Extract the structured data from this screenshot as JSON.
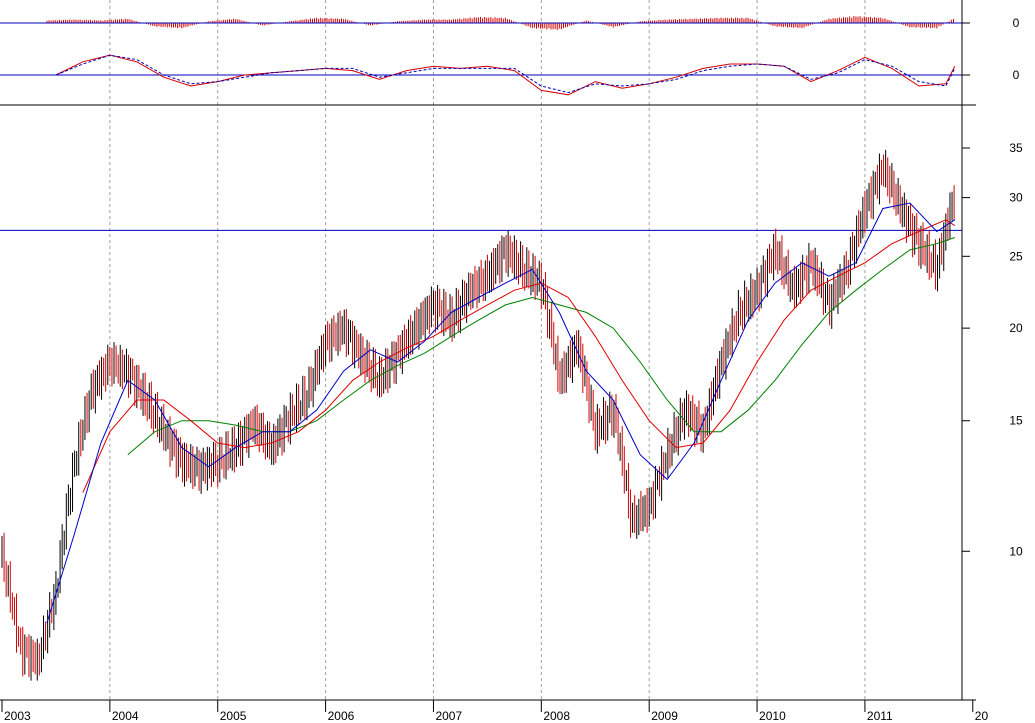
{
  "chart_data": [
    {
      "type": "bar",
      "panel": "histogram-oscillator",
      "y_tick_labels": [
        "0"
      ],
      "colors": {
        "bars": "#d40000",
        "zero_line": "#0000c0"
      },
      "x": [
        "2003-06",
        "2003-09",
        "2003-12",
        "2004-03",
        "2004-06",
        "2004-09",
        "2004-12",
        "2005-03",
        "2005-06",
        "2005-09",
        "2005-12",
        "2006-03",
        "2006-06",
        "2006-09",
        "2006-12",
        "2007-03",
        "2007-06",
        "2007-09",
        "2007-12",
        "2008-03",
        "2008-06",
        "2008-09",
        "2008-12",
        "2009-03",
        "2009-06",
        "2009-09",
        "2009-12",
        "2010-03",
        "2010-06",
        "2010-09",
        "2010-12",
        "2011-03",
        "2011-06",
        "2011-09",
        "2011-11"
      ],
      "values": [
        0.3,
        0.4,
        0.3,
        0.5,
        -0.4,
        -0.6,
        0.2,
        0.5,
        -0.3,
        0.2,
        0.6,
        0.5,
        -0.3,
        0.2,
        0.4,
        0.4,
        0.7,
        0.6,
        -0.6,
        -0.8,
        0.3,
        -0.5,
        0.2,
        0.4,
        0.5,
        0.6,
        0.6,
        -0.4,
        -0.6,
        0.5,
        0.8,
        0.6,
        -0.5,
        -0.6,
        0.6
      ]
    },
    {
      "type": "line",
      "panel": "momentum-oscillator",
      "y_tick_labels": [
        "0"
      ],
      "colors": {
        "main": "#d40000",
        "signal": "#0000c0",
        "zero_line": "#0000c0"
      },
      "x": [
        "2003-07",
        "2003-10",
        "2004-01",
        "2004-04",
        "2004-07",
        "2004-10",
        "2005-01",
        "2005-04",
        "2005-07",
        "2005-10",
        "2006-01",
        "2006-04",
        "2006-07",
        "2006-10",
        "2007-01",
        "2007-04",
        "2007-07",
        "2007-10",
        "2008-01",
        "2008-04",
        "2008-07",
        "2008-10",
        "2009-01",
        "2009-04",
        "2009-07",
        "2009-10",
        "2010-01",
        "2010-04",
        "2010-07",
        "2010-10",
        "2011-01",
        "2011-04",
        "2011-07",
        "2011-10",
        "2011-11"
      ],
      "series": [
        {
          "values": [
            0.0,
            0.6,
            0.9,
            0.6,
            -0.1,
            -0.5,
            -0.3,
            0.0,
            0.1,
            0.2,
            0.3,
            0.2,
            -0.2,
            0.2,
            0.4,
            0.3,
            0.4,
            0.2,
            -0.7,
            -0.9,
            -0.3,
            -0.6,
            -0.4,
            -0.1,
            0.3,
            0.5,
            0.5,
            0.4,
            -0.3,
            0.2,
            0.8,
            0.3,
            -0.5,
            -0.4,
            0.4
          ]
        },
        {
          "values": [
            0.0,
            0.5,
            0.9,
            0.7,
            0.0,
            -0.4,
            -0.3,
            -0.1,
            0.1,
            0.2,
            0.3,
            0.3,
            -0.1,
            0.1,
            0.3,
            0.3,
            0.3,
            0.3,
            -0.5,
            -0.8,
            -0.4,
            -0.5,
            -0.4,
            -0.2,
            0.2,
            0.4,
            0.5,
            0.4,
            -0.2,
            0.1,
            0.7,
            0.4,
            -0.3,
            -0.5,
            0.3
          ]
        }
      ]
    },
    {
      "type": "line",
      "panel": "price",
      "scale": "log",
      "ylim": [
        6.3,
        40
      ],
      "y_tick_labels": [
        "35",
        "30",
        "25",
        "20",
        "15",
        "10"
      ],
      "x_tick_labels": [
        "2003",
        "2004",
        "2005",
        "2006",
        "2007",
        "2008",
        "2009",
        "2010",
        "2011",
        "20"
      ],
      "grid": "vertical-dashed-at-years",
      "horizontal_line": 27.1,
      "colors": {
        "up_bar": "#000000",
        "down_bar": "#d40000",
        "ma_short": "#0000c8",
        "ma_medium": "#e00000",
        "ma_long": "#008000",
        "level_line": "#0000c0"
      },
      "price_x": [
        "2003-01",
        "2003-03",
        "2003-05",
        "2003-07",
        "2003-09",
        "2003-11",
        "2004-01",
        "2004-03",
        "2004-05",
        "2004-07",
        "2004-09",
        "2004-11",
        "2005-01",
        "2005-03",
        "2005-05",
        "2005-07",
        "2005-09",
        "2005-11",
        "2006-01",
        "2006-03",
        "2006-05",
        "2006-07",
        "2006-09",
        "2006-11",
        "2007-01",
        "2007-03",
        "2007-05",
        "2007-07",
        "2007-09",
        "2007-11",
        "2008-01",
        "2008-03",
        "2008-05",
        "2008-07",
        "2008-09",
        "2008-11",
        "2009-01",
        "2009-03",
        "2009-05",
        "2009-07",
        "2009-09",
        "2009-11",
        "2010-01",
        "2010-03",
        "2010-05",
        "2010-07",
        "2010-09",
        "2010-11",
        "2011-01",
        "2011-03",
        "2011-05",
        "2011-07",
        "2011-09",
        "2011-11"
      ],
      "close": [
        9.8,
        7.4,
        7.1,
        8.8,
        13.0,
        16.5,
        18.0,
        17.5,
        16.0,
        14.5,
        13.2,
        12.9,
        13.2,
        13.8,
        14.9,
        13.8,
        15.2,
        16.3,
        19.2,
        20.0,
        18.3,
        17.0,
        18.5,
        20.0,
        21.5,
        20.5,
        22.5,
        23.5,
        25.5,
        24.0,
        23.0,
        17.0,
        19.0,
        14.5,
        15.5,
        11.0,
        11.5,
        13.5,
        15.5,
        14.5,
        18.0,
        21.0,
        22.5,
        25.5,
        22.5,
        24.5,
        21.5,
        24.0,
        29.0,
        33.0,
        29.0,
        26.0,
        24.0,
        30.5
      ],
      "ma_short": {
        "x": [
          "2003-06",
          "2003-09",
          "2003-12",
          "2004-03",
          "2004-06",
          "2004-09",
          "2004-12",
          "2005-03",
          "2005-06",
          "2005-09",
          "2005-12",
          "2006-03",
          "2006-06",
          "2006-09",
          "2006-12",
          "2007-03",
          "2007-06",
          "2007-09",
          "2007-12",
          "2008-03",
          "2008-06",
          "2008-09",
          "2008-12",
          "2009-03",
          "2009-06",
          "2009-09",
          "2009-12",
          "2010-03",
          "2010-06",
          "2010-09",
          "2010-12",
          "2011-03",
          "2011-06",
          "2011-09",
          "2011-11"
        ],
        "values": [
          8.0,
          10.5,
          14.0,
          17.0,
          16.0,
          13.8,
          13.0,
          13.8,
          14.5,
          14.5,
          15.5,
          17.5,
          18.7,
          18.0,
          19.2,
          21.0,
          22.0,
          23.0,
          24.0,
          21.0,
          17.5,
          16.0,
          13.5,
          12.5,
          14.0,
          17.0,
          20.5,
          23.0,
          24.5,
          23.5,
          24.5,
          29.0,
          29.5,
          27.0,
          28.0
        ]
      },
      "ma_medium": {
        "x": [
          "2003-10",
          "2004-01",
          "2004-04",
          "2004-07",
          "2004-10",
          "2005-01",
          "2005-04",
          "2005-07",
          "2005-10",
          "2006-01",
          "2006-04",
          "2006-07",
          "2006-10",
          "2007-01",
          "2007-04",
          "2007-07",
          "2007-10",
          "2008-01",
          "2008-04",
          "2008-07",
          "2008-10",
          "2009-01",
          "2009-04",
          "2009-07",
          "2009-10",
          "2010-01",
          "2010-04",
          "2010-07",
          "2010-10",
          "2011-01",
          "2011-04",
          "2011-07",
          "2011-10",
          "2011-11"
        ],
        "values": [
          12.0,
          14.5,
          16.0,
          16.0,
          15.0,
          14.0,
          13.8,
          14.0,
          14.5,
          15.5,
          17.0,
          18.0,
          18.8,
          19.5,
          20.5,
          21.5,
          22.5,
          23.0,
          22.0,
          19.5,
          17.0,
          15.0,
          13.8,
          14.0,
          15.5,
          18.0,
          20.5,
          22.5,
          23.5,
          24.5,
          26.0,
          27.0,
          28.0,
          27.5
        ]
      },
      "ma_long": {
        "x": [
          "2004-03",
          "2004-06",
          "2004-09",
          "2004-12",
          "2005-03",
          "2005-06",
          "2005-09",
          "2005-12",
          "2006-03",
          "2006-06",
          "2006-09",
          "2006-12",
          "2007-03",
          "2007-06",
          "2007-09",
          "2007-12",
          "2008-03",
          "2008-06",
          "2008-09",
          "2008-12",
          "2009-03",
          "2009-06",
          "2009-09",
          "2009-12",
          "2010-03",
          "2010-06",
          "2010-09",
          "2010-12",
          "2011-03",
          "2011-06",
          "2011-09",
          "2011-11"
        ],
        "values": [
          13.5,
          14.5,
          15.0,
          15.0,
          14.8,
          14.5,
          14.5,
          15.0,
          16.0,
          17.0,
          17.8,
          18.5,
          19.5,
          20.5,
          21.5,
          22.0,
          21.5,
          21.0,
          20.0,
          18.0,
          16.0,
          14.5,
          14.5,
          15.5,
          17.0,
          19.0,
          21.0,
          22.5,
          24.0,
          25.5,
          26.0,
          26.5
        ]
      }
    }
  ]
}
